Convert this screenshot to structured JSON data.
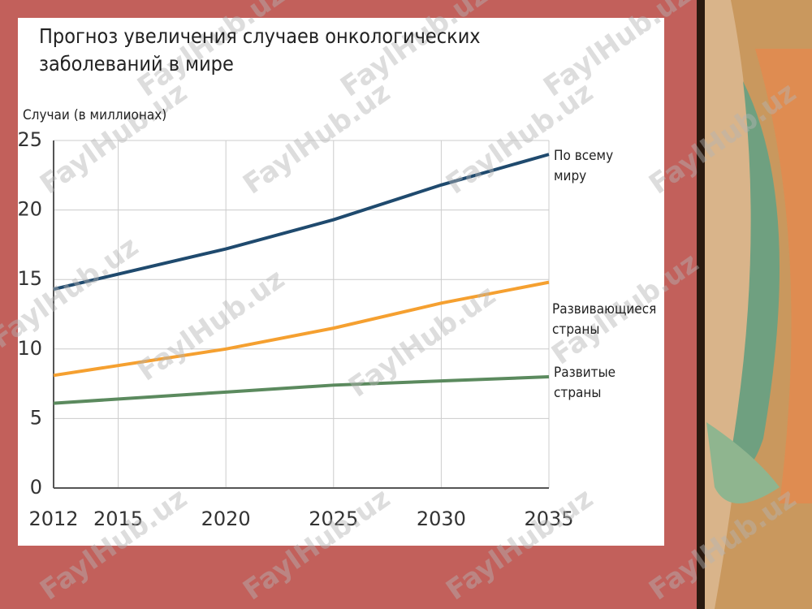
{
  "chart_data": {
    "type": "line",
    "title": "Прогноз увеличения случаев онкологических заболеваний в мире",
    "y_label": "Случаи (в миллионах)",
    "x": [
      2012,
      2020,
      2025,
      2030,
      2035
    ],
    "series": [
      {
        "name": "По всему миру",
        "color": "#1f4a6e",
        "values": [
          14.3,
          17.2,
          19.3,
          21.8,
          24.0
        ]
      },
      {
        "name": "Развивающиеся страны",
        "color": "#f5a030",
        "values": [
          8.1,
          10.0,
          11.5,
          13.3,
          14.8
        ]
      },
      {
        "name": "Развитые страны",
        "color": "#5b8a5e",
        "values": [
          6.1,
          6.9,
          7.4,
          7.7,
          8.0
        ]
      }
    ],
    "xlim": [
      2012,
      2035
    ],
    "xticks": [
      2012,
      2015,
      2020,
      2025,
      2030,
      2035
    ],
    "ylim": [
      0,
      25
    ],
    "yticks": [
      0,
      5,
      10,
      15,
      20,
      25
    ],
    "grid": true
  },
  "watermark": "FaylHub.uz"
}
